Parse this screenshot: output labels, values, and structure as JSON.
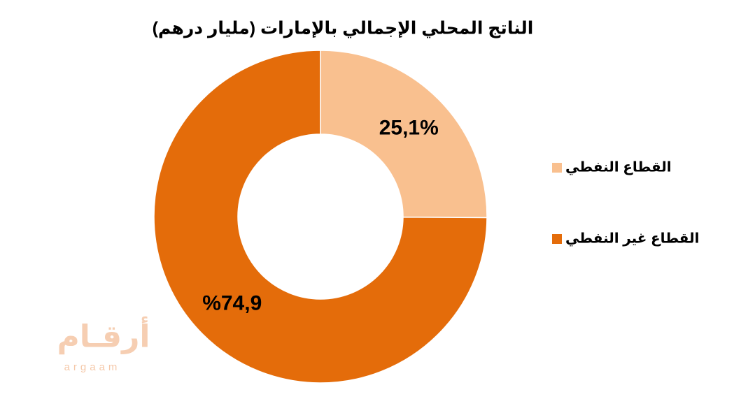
{
  "chart_data": {
    "type": "donut",
    "title": "الناتج المحلي الإجمالي بالإمارات (مليار درهم)",
    "categories": [
      "القطاع النفطي",
      "القطاع غير النفطي"
    ],
    "values": [
      25.1,
      74.9
    ],
    "value_labels": [
      "25,1%",
      "%74,9"
    ],
    "colors": [
      "#f9c08f",
      "#e46c0a"
    ],
    "legend": "right"
  },
  "watermark": {
    "arabic": "أرقـام",
    "latin": "argaam"
  }
}
